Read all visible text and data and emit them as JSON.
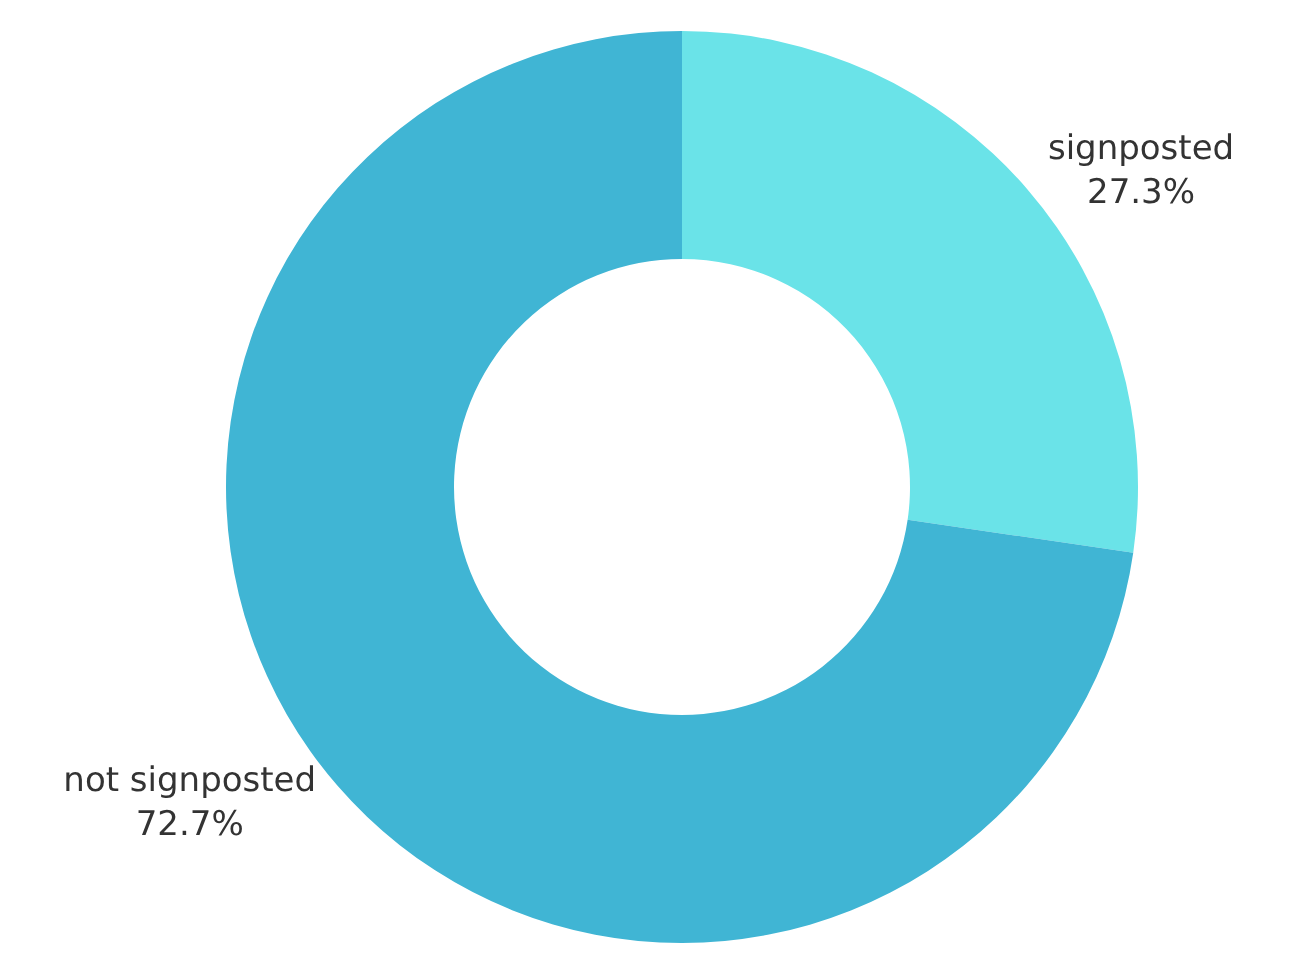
{
  "chart_data": {
    "type": "donut",
    "categories": [
      "signposted",
      "not signposted"
    ],
    "values": [
      27.3,
      72.7
    ],
    "colors": [
      "#6ae3e8",
      "#40b5d4"
    ],
    "value_labels": [
      "27.3%",
      "72.7%"
    ],
    "legend": false
  }
}
